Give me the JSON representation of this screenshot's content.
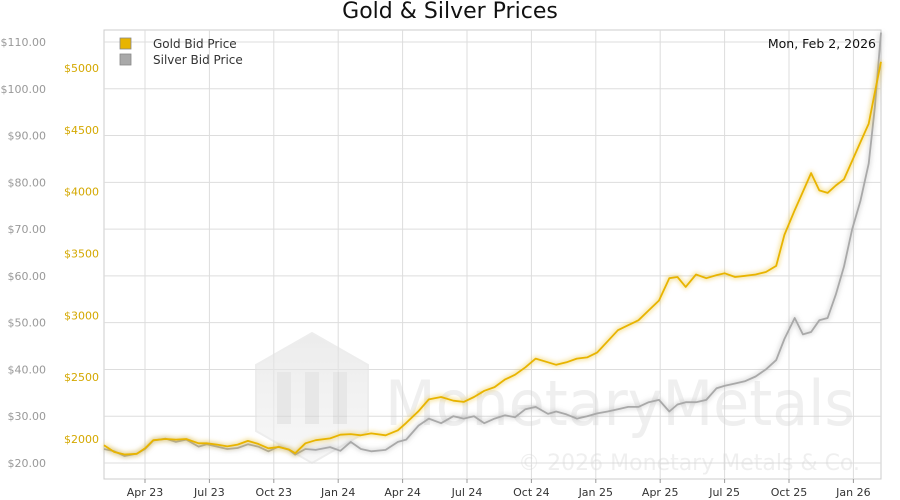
{
  "chart_data": {
    "type": "line",
    "title": "Gold & Silver Prices",
    "date_label": "Mon, Feb 2, 2026",
    "x_ticks": [
      "Apr 23",
      "Jul 23",
      "Oct 23",
      "Jan 24",
      "Apr 24",
      "Jul 24",
      "Oct 24",
      "Jan 25",
      "Apr 25",
      "Jul 25",
      "Oct 25",
      "Jan 26"
    ],
    "x_range": [
      0,
      37.8
    ],
    "left_axis": {
      "ticks": [
        "$20.00",
        "$30.00",
        "$40.00",
        "$50.00",
        "$60.00",
        "$70.00",
        "$80.00",
        "$90.00",
        "$100.00",
        "$110.00"
      ],
      "range": [
        20,
        110
      ]
    },
    "right_axis": {
      "ticks": [
        "$2000",
        "$2500",
        "$3000",
        "$3500",
        "$4000",
        "$4500",
        "$5000"
      ],
      "range": [
        1950,
        5000
      ]
    },
    "grid": true,
    "legend_position": "top-left",
    "series": [
      {
        "name": "Gold Bid Price",
        "color": "#e8b400",
        "axis": "right",
        "points": [
          [
            0,
            1950
          ],
          [
            0.5,
            1895
          ],
          [
            1,
            1875
          ],
          [
            1.6,
            1880
          ],
          [
            2,
            1925
          ],
          [
            2.4,
            1990
          ],
          [
            3,
            2000
          ],
          [
            3.5,
            1995
          ],
          [
            4,
            2000
          ],
          [
            4.6,
            1965
          ],
          [
            5,
            1965
          ],
          [
            5.5,
            1955
          ],
          [
            6,
            1940
          ],
          [
            6.5,
            1955
          ],
          [
            7,
            1985
          ],
          [
            7.5,
            1960
          ],
          [
            8,
            1925
          ],
          [
            8.5,
            1935
          ],
          [
            9,
            1915
          ],
          [
            9.3,
            1885
          ],
          [
            9.8,
            1965
          ],
          [
            10.3,
            1990
          ],
          [
            11,
            2005
          ],
          [
            11.5,
            2035
          ],
          [
            12,
            2040
          ],
          [
            12.5,
            2030
          ],
          [
            13,
            2045
          ],
          [
            13.7,
            2030
          ],
          [
            14.3,
            2070
          ],
          [
            14.7,
            2130
          ],
          [
            15.3,
            2225
          ],
          [
            15.8,
            2320
          ],
          [
            16.4,
            2340
          ],
          [
            17,
            2310
          ],
          [
            17.5,
            2300
          ],
          [
            18,
            2340
          ],
          [
            18.5,
            2390
          ],
          [
            19,
            2420
          ],
          [
            19.5,
            2480
          ],
          [
            20,
            2520
          ],
          [
            20.5,
            2580
          ],
          [
            21,
            2650
          ],
          [
            21.6,
            2620
          ],
          [
            22,
            2600
          ],
          [
            22.5,
            2620
          ],
          [
            23,
            2650
          ],
          [
            23.5,
            2660
          ],
          [
            24,
            2700
          ],
          [
            24.5,
            2790
          ],
          [
            25,
            2880
          ],
          [
            25.5,
            2920
          ],
          [
            26,
            2960
          ],
          [
            26.5,
            3040
          ],
          [
            27,
            3120
          ],
          [
            27.5,
            3300
          ],
          [
            27.9,
            3310
          ],
          [
            28.3,
            3230
          ],
          [
            28.8,
            3330
          ],
          [
            29.3,
            3300
          ],
          [
            29.8,
            3325
          ],
          [
            30.2,
            3340
          ],
          [
            30.7,
            3310
          ],
          [
            31.2,
            3320
          ],
          [
            31.7,
            3330
          ],
          [
            32.2,
            3350
          ],
          [
            32.7,
            3400
          ],
          [
            33.1,
            3650
          ],
          [
            33.6,
            3850
          ],
          [
            34,
            4000
          ],
          [
            34.4,
            4150
          ],
          [
            34.8,
            4010
          ],
          [
            35.2,
            3990
          ],
          [
            35.6,
            4050
          ],
          [
            36,
            4100
          ],
          [
            36.4,
            4250
          ],
          [
            36.8,
            4400
          ],
          [
            37.2,
            4550
          ],
          [
            37.5,
            4800
          ],
          [
            37.8,
            5050
          ]
        ]
      },
      {
        "name": "Silver Bid Price",
        "color": "#a9a9a9",
        "axis": "left",
        "points": [
          [
            0,
            23
          ],
          [
            0.5,
            22.5
          ],
          [
            1,
            21.5
          ],
          [
            1.6,
            22
          ],
          [
            2,
            23
          ],
          [
            2.4,
            24.8
          ],
          [
            3,
            25.2
          ],
          [
            3.5,
            24.5
          ],
          [
            4,
            25
          ],
          [
            4.6,
            23.5
          ],
          [
            5,
            24
          ],
          [
            5.5,
            23.5
          ],
          [
            6,
            23
          ],
          [
            6.5,
            23.2
          ],
          [
            7,
            24
          ],
          [
            7.5,
            23.5
          ],
          [
            8,
            22.5
          ],
          [
            8.5,
            23.5
          ],
          [
            9,
            22.8
          ],
          [
            9.3,
            21.8
          ],
          [
            9.8,
            23
          ],
          [
            10.3,
            22.8
          ],
          [
            11,
            23.4
          ],
          [
            11.5,
            22.6
          ],
          [
            12,
            24.5
          ],
          [
            12.5,
            23
          ],
          [
            13,
            22.5
          ],
          [
            13.7,
            22.8
          ],
          [
            14.3,
            24.5
          ],
          [
            14.7,
            25
          ],
          [
            15.3,
            28
          ],
          [
            15.8,
            29.5
          ],
          [
            16.4,
            28.5
          ],
          [
            17,
            30
          ],
          [
            17.5,
            29.5
          ],
          [
            18,
            30
          ],
          [
            18.5,
            28.5
          ],
          [
            19,
            29.5
          ],
          [
            19.5,
            30.2
          ],
          [
            20,
            29.8
          ],
          [
            20.5,
            31.5
          ],
          [
            21,
            32
          ],
          [
            21.6,
            30.5
          ],
          [
            22,
            31
          ],
          [
            22.5,
            30.4
          ],
          [
            23,
            29.5
          ],
          [
            23.5,
            30
          ],
          [
            24,
            30.6
          ],
          [
            24.5,
            31
          ],
          [
            25,
            31.5
          ],
          [
            25.5,
            32
          ],
          [
            26,
            32
          ],
          [
            26.5,
            33
          ],
          [
            27,
            33.5
          ],
          [
            27.5,
            31
          ],
          [
            27.9,
            32.5
          ],
          [
            28.3,
            33
          ],
          [
            28.8,
            33
          ],
          [
            29.3,
            33.5
          ],
          [
            29.8,
            36
          ],
          [
            30.2,
            36.5
          ],
          [
            30.7,
            37
          ],
          [
            31.2,
            37.5
          ],
          [
            31.7,
            38.5
          ],
          [
            32.2,
            40
          ],
          [
            32.7,
            42
          ],
          [
            33.1,
            46.5
          ],
          [
            33.6,
            51
          ],
          [
            34,
            47.5
          ],
          [
            34.4,
            48
          ],
          [
            34.8,
            50.5
          ],
          [
            35.2,
            51
          ],
          [
            35.6,
            56
          ],
          [
            36,
            62
          ],
          [
            36.4,
            70
          ],
          [
            36.8,
            76
          ],
          [
            37.2,
            84
          ],
          [
            37.5,
            96
          ],
          [
            37.8,
            112
          ]
        ]
      }
    ]
  },
  "watermark": {
    "brand": "MonetaryMetals",
    "copyright": "© 2026 Monetary Metals & Co."
  }
}
